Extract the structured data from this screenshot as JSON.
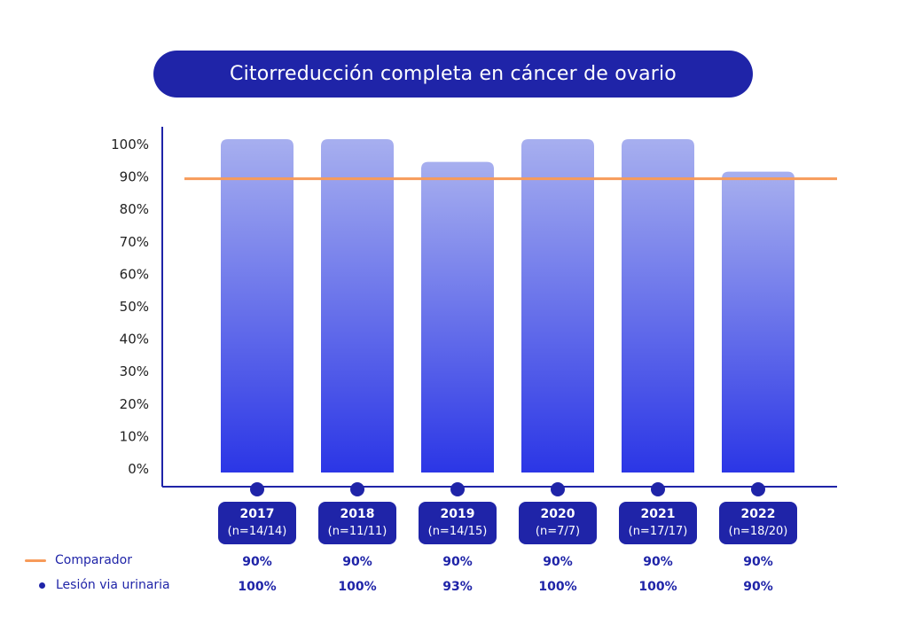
{
  "title": "Citorreducción completa en cáncer de ovario",
  "chart_data": {
    "type": "bar",
    "categories": [
      "2017",
      "2018",
      "2019",
      "2020",
      "2021",
      "2022"
    ],
    "category_sublabels": [
      "(n=14/14)",
      "(n=11/11)",
      "(n=14/15)",
      "(n=7/7)",
      "(n=17/17)",
      "(n=18/20)"
    ],
    "series": [
      {
        "name": "Lesión via urinaria",
        "values": [
          100,
          100,
          93,
          100,
          100,
          90
        ]
      },
      {
        "name": "Comparador",
        "type": "line",
        "values": [
          90,
          90,
          90,
          90,
          90,
          90
        ]
      }
    ],
    "ylim": [
      0,
      100
    ],
    "yticks": [
      "0%",
      "10%",
      "20%",
      "30%",
      "40%",
      "50%",
      "60%",
      "70%",
      "80%",
      "90%",
      "100%"
    ],
    "grid": false,
    "legend_position": "bottom-left",
    "colors": {
      "bar_top": "#a7afef",
      "bar_bottom": "#2b36e6",
      "comparator": "#f79b5a",
      "accent": "#1f24a8"
    }
  },
  "table": {
    "comparador_label": "Comparador",
    "lesion_label": "Lesión via urinaria",
    "comparador_values": [
      "90%",
      "90%",
      "90%",
      "90%",
      "90%",
      "90%"
    ],
    "lesion_values": [
      "100%",
      "100%",
      "93%",
      "100%",
      "100%",
      "90%"
    ]
  }
}
